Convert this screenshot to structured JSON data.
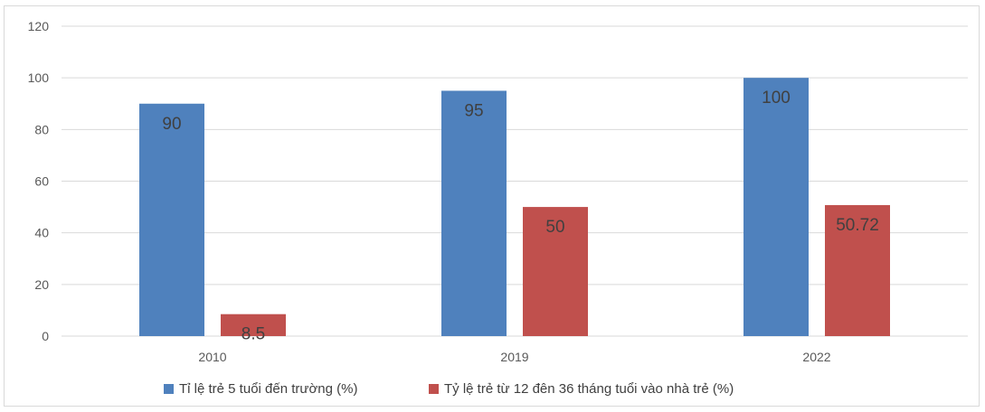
{
  "chart_data": {
    "type": "bar",
    "categories": [
      "2010",
      "2019",
      "2022"
    ],
    "series": [
      {
        "name": "Tỉ lệ trẻ 5 tuổi đến trường (%)",
        "values": [
          90,
          95,
          100
        ],
        "labels": [
          "90",
          "95",
          "100"
        ],
        "color": "#4f81bd"
      },
      {
        "name": "Tỷ lệ trẻ từ 12 đên 36 tháng tuổi vào nhà trẻ (%)",
        "values": [
          8.5,
          50,
          50.72
        ],
        "labels": [
          "8.5",
          "50",
          "50.72"
        ],
        "color": "#c0504d"
      }
    ],
    "ylim": [
      0,
      120
    ],
    "yticks": [
      0,
      20,
      40,
      60,
      80,
      100,
      120
    ],
    "grid": true,
    "legend_position": "bottom",
    "gridline_color": "#d9d9d9"
  }
}
